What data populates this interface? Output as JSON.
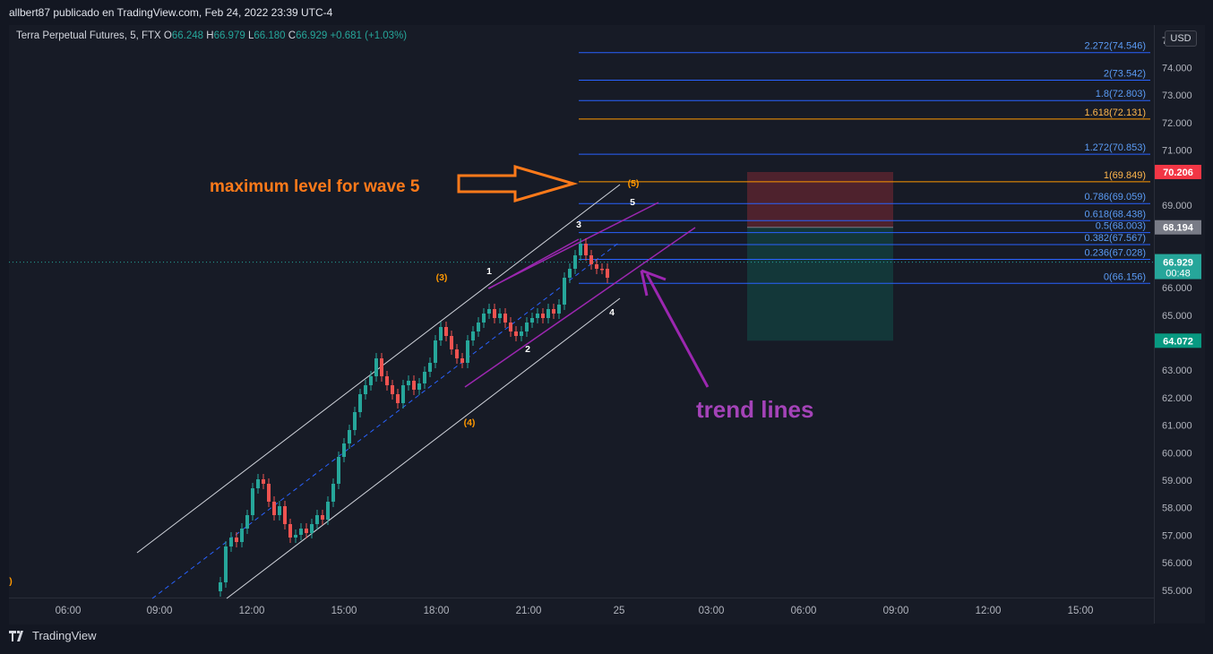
{
  "header": {
    "byline": "allbert87 publicado en TradingView.com, Feb 24, 2022 23:39 UTC-4"
  },
  "legend": {
    "symbol": "Terra Perpetual Futures, 5, FTX",
    "o_label": "O",
    "o": "66.248",
    "h_label": "H",
    "h": "66.979",
    "l_label": "L",
    "l": "66.180",
    "c_label": "C",
    "c": "66.929",
    "change": "+0.681 (+1.03%)"
  },
  "currency": "USD",
  "price_axis": {
    "ticks": [
      {
        "label": "74.000",
        "v": 74
      },
      {
        "label": "73.000",
        "v": 73
      },
      {
        "label": "72.000",
        "v": 72
      },
      {
        "label": "71.000",
        "v": 71
      },
      {
        "label": "69.000",
        "v": 69
      },
      {
        "label": "66.000",
        "v": 66
      },
      {
        "label": "65.000",
        "v": 65
      },
      {
        "label": "63.000",
        "v": 63
      },
      {
        "label": "62.000",
        "v": 62
      },
      {
        "label": "61.000",
        "v": 61
      },
      {
        "label": "60.000",
        "v": 60
      },
      {
        "label": "59.000",
        "v": 59
      },
      {
        "label": "58.000",
        "v": 58
      },
      {
        "label": "57.000",
        "v": 57
      },
      {
        "label": "56.000",
        "v": 56
      },
      {
        "label": "55.000",
        "v": 55
      }
    ],
    "partial_label": "7",
    "badges": [
      {
        "label": "70.206",
        "v": 70.206,
        "color": "#f23645"
      },
      {
        "label": "68.194",
        "v": 68.194,
        "color": "#787b86"
      },
      {
        "label": "66.929",
        "sub": "00:48",
        "v": 66.929,
        "color": "#26a69a"
      },
      {
        "label": "64.072",
        "v": 64.072,
        "color": "#089981"
      }
    ]
  },
  "time_axis": {
    "ticks": [
      "06:00",
      "09:00",
      "12:00",
      "15:00",
      "18:00",
      "21:00",
      "25",
      "03:00",
      "06:00",
      "09:00",
      "12:00",
      "15:00"
    ]
  },
  "fib_levels": [
    {
      "label": "2.272(74.546)",
      "v": 74.546,
      "color": "#2962ff"
    },
    {
      "label": "2(73.542)",
      "v": 73.542,
      "color": "#2962ff"
    },
    {
      "label": "1.8(72.803)",
      "v": 72.803,
      "color": "#2962ff"
    },
    {
      "label": "1.618(72.131)",
      "v": 72.131,
      "color": "#ff9800"
    },
    {
      "label": "1.272(70.853)",
      "v": 70.853,
      "color": "#2962ff"
    },
    {
      "label": "1(69.849)",
      "v": 69.849,
      "color": "#ff9800"
    },
    {
      "label": "0.786(69.059)",
      "v": 69.059,
      "color": "#2962ff"
    },
    {
      "label": "0.618(68.438)",
      "v": 68.438,
      "color": "#2962ff"
    },
    {
      "label": "0.5(68.003)",
      "v": 68.003,
      "color": "#2962ff"
    },
    {
      "label": "0.382(67.567)",
      "v": 67.567,
      "color": "#2962ff"
    },
    {
      "label": "0.236(67.028)",
      "v": 67.028,
      "color": "#2962ff"
    },
    {
      "label": "0(66.156)",
      "v": 66.156,
      "color": "#2962ff"
    }
  ],
  "wave_labels": {
    "w5_paren": "(5)",
    "w3_paren": "(3)",
    "w4_paren": "(4)",
    "w1": "1",
    "w2": "2",
    "w3": "3",
    "w4": "4",
    "w5": "5",
    "edge_paren": ")"
  },
  "annotations": {
    "max_level": "maximum level for wave 5",
    "trend_lines": "trend lines"
  },
  "colors": {
    "up": "#26a69a",
    "down": "#ef5350",
    "orange": "#ff7a1a",
    "purple": "#9c27b0",
    "channel": "#d1d4dc"
  },
  "footer": {
    "brand": "TradingView"
  }
}
